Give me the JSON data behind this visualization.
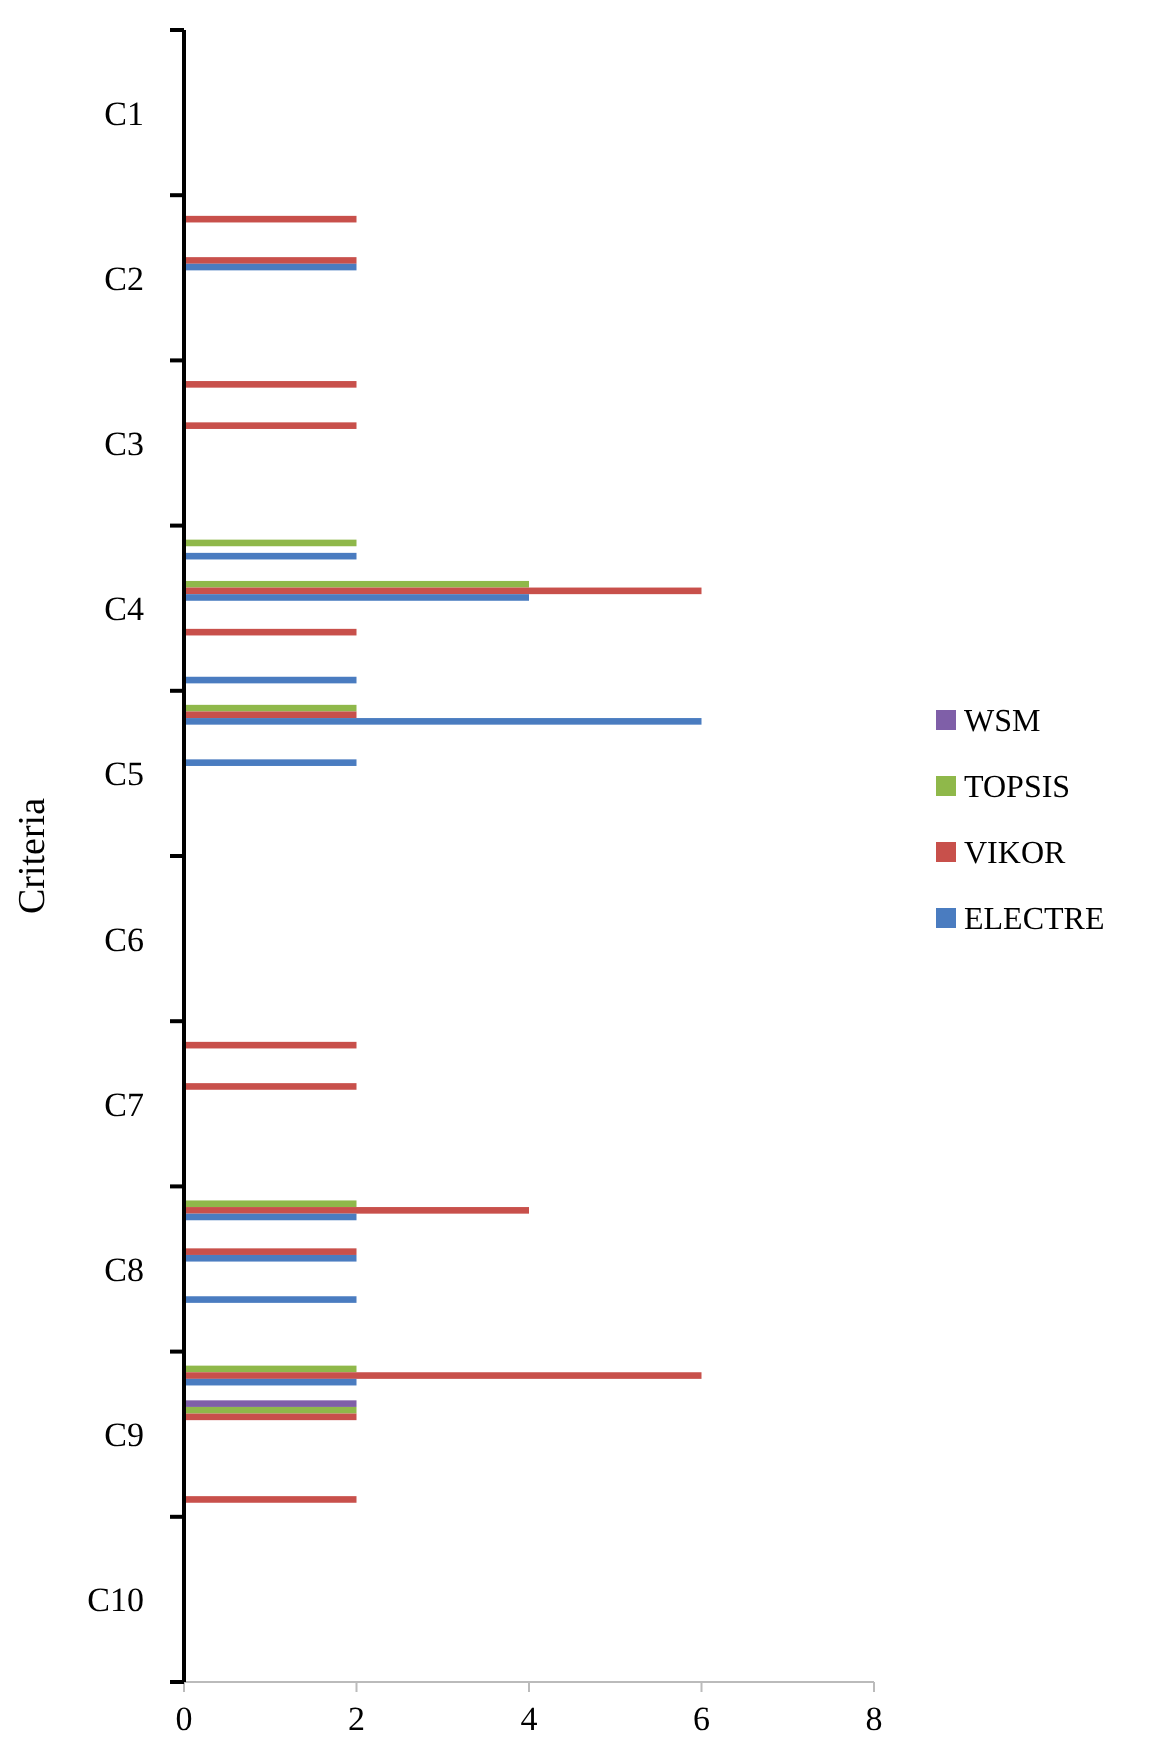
{
  "chart_data": {
    "type": "bar",
    "orientation": "horizontal",
    "ylabel": "Criteria",
    "categories": [
      "C1",
      "C2",
      "C3",
      "C4",
      "C5",
      "C6",
      "C7",
      "C8",
      "C9",
      "C10"
    ],
    "xlim": [
      0,
      8
    ],
    "xticks": [
      0,
      2,
      4,
      6,
      8
    ],
    "grid": false,
    "legend": "right",
    "series": [
      {
        "name": "WSM",
        "color": "#7f5fa8",
        "values": [
          null,
          null,
          null,
          null,
          null,
          null,
          null,
          null,
          null,
          null
        ]
      },
      {
        "name": "TOPSIS",
        "color": "#8fb84a",
        "values": [
          null,
          null,
          null,
          2,
          2,
          null,
          null,
          2,
          2,
          null
        ]
      },
      {
        "name": "VIKOR",
        "color": "#c8504b",
        "values": [
          null,
          2,
          2,
          null,
          2,
          null,
          2,
          4,
          6,
          null
        ]
      },
      {
        "name": "ELECTRE",
        "color": "#4a7cc0",
        "values": [
          null,
          null,
          null,
          2,
          6,
          null,
          null,
          2,
          2,
          null
        ]
      },
      {
        "color": "#7f5fa8",
        "values": [
          null,
          null,
          null,
          null,
          null,
          null,
          null,
          null,
          2,
          null
        ]
      },
      {
        "color": "#8fb84a",
        "values": [
          null,
          null,
          null,
          4,
          null,
          null,
          null,
          null,
          2,
          null
        ]
      },
      {
        "color": "#c8504b",
        "values": [
          null,
          2,
          2,
          6,
          null,
          null,
          2,
          2,
          2,
          null
        ]
      },
      {
        "color": "#4a7cc0",
        "values": [
          null,
          2,
          null,
          4,
          2,
          null,
          null,
          2,
          null,
          null
        ]
      },
      {
        "color": "#7f5fa8",
        "values": [
          null,
          null,
          null,
          null,
          null,
          null,
          null,
          null,
          null,
          null
        ]
      },
      {
        "color": "#8fb84a",
        "values": [
          null,
          null,
          null,
          null,
          null,
          null,
          null,
          null,
          null,
          null
        ]
      },
      {
        "color": "#c8504b",
        "values": [
          null,
          null,
          null,
          2,
          null,
          null,
          null,
          null,
          null,
          null
        ]
      },
      {
        "color": "#4a7cc0",
        "values": [
          null,
          null,
          null,
          null,
          null,
          null,
          null,
          2,
          null,
          null
        ]
      },
      {
        "color": "#7f5fa8",
        "values": [
          null,
          null,
          null,
          null,
          null,
          null,
          null,
          null,
          null,
          null
        ]
      },
      {
        "color": "#8fb84a",
        "values": [
          null,
          null,
          null,
          null,
          null,
          null,
          null,
          null,
          null,
          null
        ]
      },
      {
        "color": "#c8504b",
        "values": [
          null,
          null,
          null,
          null,
          null,
          null,
          null,
          null,
          2,
          null
        ]
      },
      {
        "color": "#4a7cc0",
        "values": [
          null,
          null,
          null,
          2,
          null,
          null,
          null,
          null,
          null,
          null
        ]
      }
    ]
  }
}
